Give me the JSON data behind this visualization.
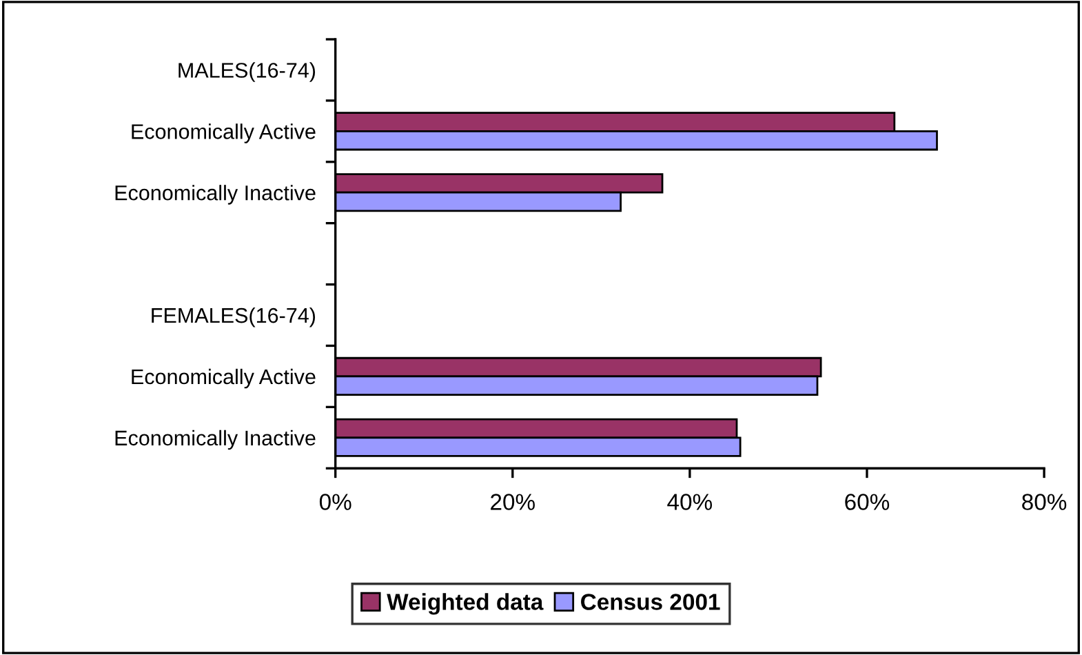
{
  "chart_data": {
    "type": "bar",
    "orientation": "horizontal",
    "categories": [
      "MALES(16-74)",
      "Economically Active",
      "Economically Inactive",
      null,
      "FEMALES(16-74)",
      "Economically Active",
      "Economically Inactive"
    ],
    "series": [
      {
        "name": "Weighted data",
        "color": "#993366",
        "values": [
          null,
          63.1,
          36.9,
          null,
          null,
          54.8,
          45.3
        ]
      },
      {
        "name": "Census 2001",
        "color": "#9999ff",
        "values": [
          null,
          67.9,
          32.2,
          null,
          null,
          54.4,
          45.7
        ]
      }
    ],
    "xlim": [
      0,
      80
    ],
    "xticks": [
      {
        "value": 0,
        "label": "0%"
      },
      {
        "value": 20,
        "label": "20%"
      },
      {
        "value": 40,
        "label": "40%"
      },
      {
        "value": 60,
        "label": "60%"
      },
      {
        "value": 80,
        "label": "80%"
      }
    ],
    "grid": false,
    "legend": "bottom"
  }
}
